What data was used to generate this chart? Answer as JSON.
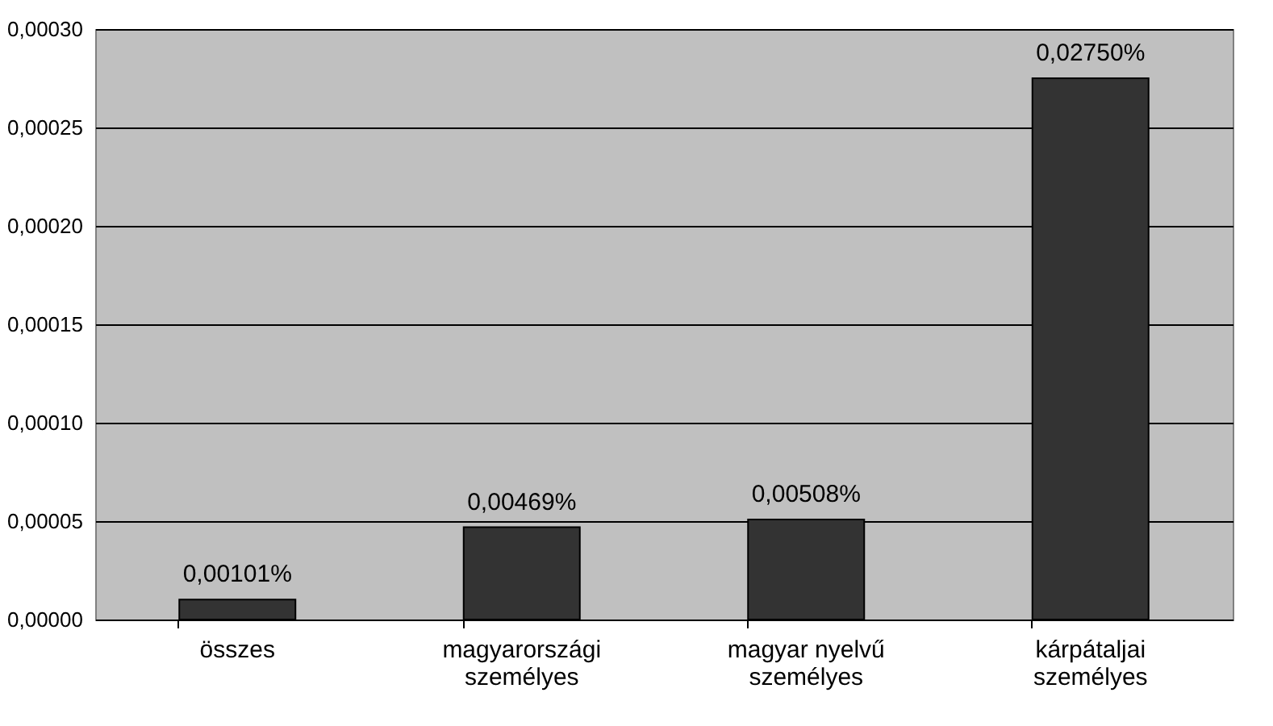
{
  "chart_data": {
    "type": "bar",
    "categories": [
      "összes",
      "magyarországi\nszemélyes",
      "magyar nyelvű\nszemélyes",
      "kárpátaljai\nszemélyes"
    ],
    "values": [
      1.01e-05,
      4.69e-05,
      5.08e-05,
      0.000275
    ],
    "value_labels": [
      "0,00101%",
      "0,00469%",
      "0,00508%",
      "0,02750%"
    ],
    "color": "#333333",
    "ylim": [
      0,
      0.0003
    ],
    "yticks": [
      {
        "value": 0,
        "label": "0,00000"
      },
      {
        "value": 5e-05,
        "label": "0,00005"
      },
      {
        "value": 0.0001,
        "label": "0,00010"
      },
      {
        "value": 0.00015,
        "label": "0,00015"
      },
      {
        "value": 0.0002,
        "label": "0,00020"
      },
      {
        "value": 0.00025,
        "label": "0,00025"
      },
      {
        "value": 0.0003,
        "label": "0,00030"
      }
    ],
    "grid": "y"
  }
}
